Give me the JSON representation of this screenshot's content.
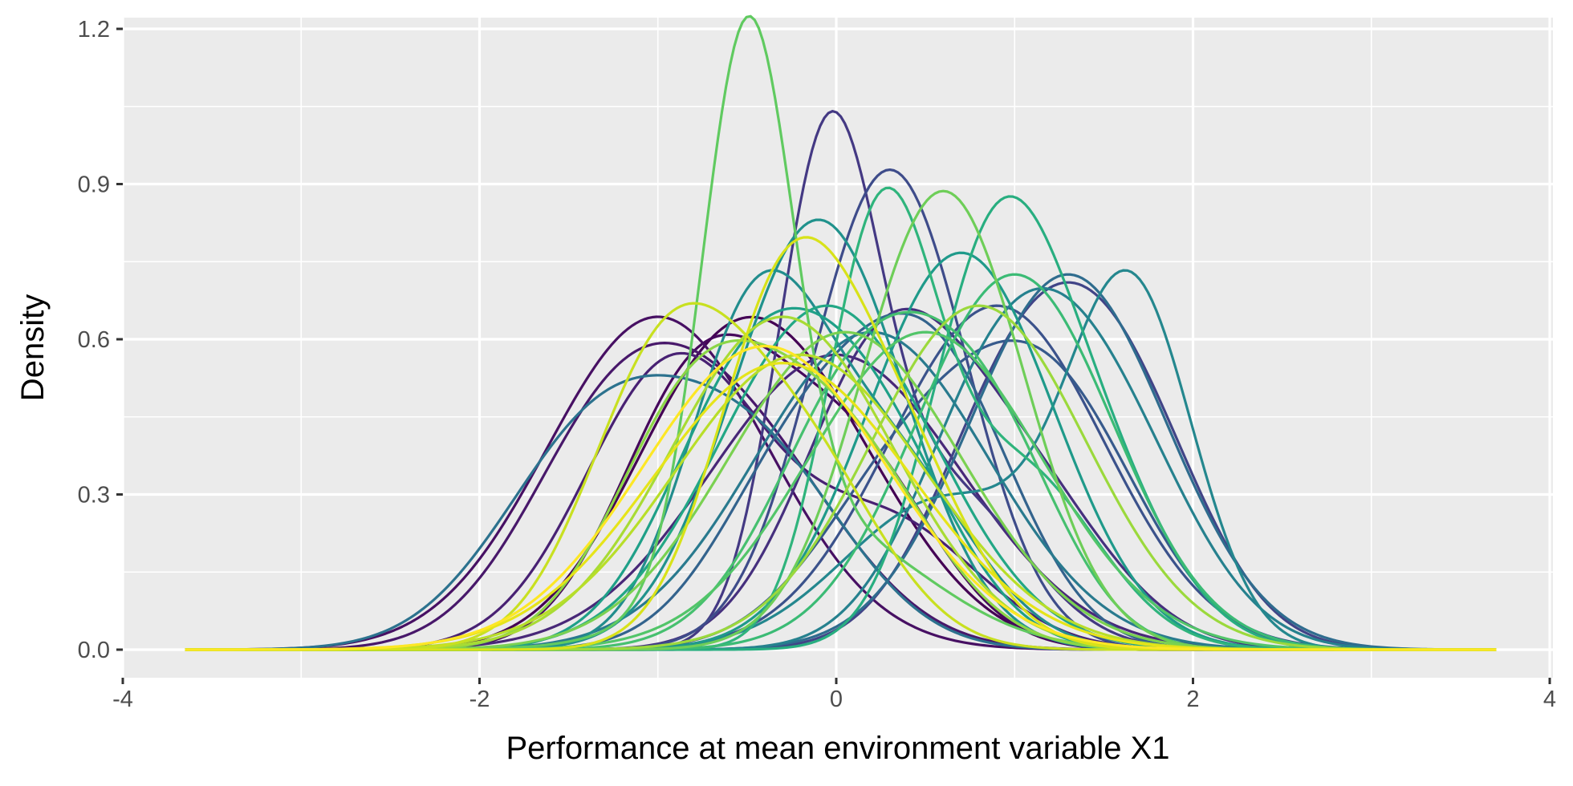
{
  "chart_data": {
    "type": "line",
    "xlabel": "Performance at mean environment variable X1",
    "ylabel": "Density",
    "xlim": [
      -4,
      4
    ],
    "ylim": [
      -0.05,
      1.2
    ],
    "x_ticks": [
      -4,
      -2,
      0,
      2,
      4
    ],
    "x_tick_labels": [
      "-4",
      "-2",
      "0",
      "2",
      "4"
    ],
    "y_ticks": [
      0.0,
      0.3,
      0.6,
      0.9,
      1.2
    ],
    "y_tick_labels": [
      "0.0",
      "0.3",
      "0.6",
      "0.9",
      "1.2"
    ],
    "grid": true,
    "legend": "none",
    "colors": {
      "panel_background": "#ebebeb",
      "grid_major": "#ffffff",
      "palette": "viridis"
    },
    "x_range": [
      -3.65,
      3.7
    ],
    "series": [
      {
        "color": "#440154",
        "components": [
          {
            "w": 0.55,
            "mu": -0.7,
            "sd": 0.52
          },
          {
            "w": 0.45,
            "mu": -0.1,
            "sd": 0.55
          }
        ]
      },
      {
        "color": "#46085c",
        "components": [
          {
            "w": 0.6,
            "mu": -0.75,
            "sd": 0.45
          },
          {
            "w": 0.4,
            "mu": 0.1,
            "sd": 0.45
          }
        ]
      },
      {
        "color": "#471063",
        "components": [
          {
            "w": 1.0,
            "mu": -1.0,
            "sd": 0.62
          }
        ]
      },
      {
        "color": "#48186a",
        "components": [
          {
            "w": 0.5,
            "mu": -1.25,
            "sd": 0.5
          },
          {
            "w": 0.5,
            "mu": -0.5,
            "sd": 0.55
          }
        ]
      },
      {
        "color": "#482173",
        "components": [
          {
            "w": 0.7,
            "mu": -0.9,
            "sd": 0.5
          },
          {
            "w": 0.3,
            "mu": 0.3,
            "sd": 0.5
          }
        ]
      },
      {
        "color": "#482878",
        "components": [
          {
            "w": 1.0,
            "mu": 0.0,
            "sd": 0.7
          }
        ]
      },
      {
        "color": "#46307e",
        "components": [
          {
            "w": 0.6,
            "mu": 0.25,
            "sd": 0.45
          },
          {
            "w": 0.4,
            "mu": 1.0,
            "sd": 0.5
          }
        ]
      },
      {
        "color": "#443983",
        "components": [
          {
            "w": 0.65,
            "mu": -0.05,
            "sd": 0.28
          },
          {
            "w": 0.35,
            "mu": 0.6,
            "sd": 0.45
          }
        ]
      },
      {
        "color": "#414487",
        "components": [
          {
            "w": 0.5,
            "mu": 1.0,
            "sd": 0.45
          },
          {
            "w": 0.5,
            "mu": 1.6,
            "sd": 0.45
          }
        ]
      },
      {
        "color": "#3e4c8a",
        "components": [
          {
            "w": 1.0,
            "mu": 0.3,
            "sd": 0.43
          }
        ]
      },
      {
        "color": "#3b528b",
        "components": [
          {
            "w": 1.0,
            "mu": 0.9,
            "sd": 0.6
          }
        ]
      },
      {
        "color": "#375a8c",
        "components": [
          {
            "w": 0.6,
            "mu": 1.2,
            "sd": 0.5
          },
          {
            "w": 0.4,
            "mu": 0.4,
            "sd": 0.5
          }
        ]
      },
      {
        "color": "#33638d",
        "components": [
          {
            "w": 0.6,
            "mu": 0.55,
            "sd": 0.45
          },
          {
            "w": 0.4,
            "mu": -0.2,
            "sd": 0.45
          }
        ]
      },
      {
        "color": "#2f6c8e",
        "components": [
          {
            "w": 1.0,
            "mu": 1.3,
            "sd": 0.55
          }
        ]
      },
      {
        "color": "#2c728e",
        "components": [
          {
            "w": 0.6,
            "mu": -1.3,
            "sd": 0.55
          },
          {
            "w": 0.4,
            "mu": -0.4,
            "sd": 0.5
          }
        ]
      },
      {
        "color": "#297a8e",
        "components": [
          {
            "w": 1.0,
            "mu": 0.2,
            "sd": 0.65
          }
        ]
      },
      {
        "color": "#26818e",
        "components": [
          {
            "w": 0.5,
            "mu": 1.5,
            "sd": 0.48
          },
          {
            "w": 0.5,
            "mu": 0.9,
            "sd": 0.45
          }
        ]
      },
      {
        "color": "#24878e",
        "components": [
          {
            "w": 0.6,
            "mu": 1.65,
            "sd": 0.35
          },
          {
            "w": 0.4,
            "mu": 0.6,
            "sd": 0.55
          }
        ]
      },
      {
        "color": "#228d8d",
        "components": [
          {
            "w": 0.6,
            "mu": -0.45,
            "sd": 0.38
          },
          {
            "w": 0.4,
            "mu": 0.3,
            "sd": 0.45
          }
        ]
      },
      {
        "color": "#20928c",
        "components": [
          {
            "w": 1.0,
            "mu": -0.1,
            "sd": 0.48
          }
        ]
      },
      {
        "color": "#1f9a8a",
        "components": [
          {
            "w": 1.0,
            "mu": 0.7,
            "sd": 0.52
          }
        ]
      },
      {
        "color": "#1fa088",
        "components": [
          {
            "w": 0.55,
            "mu": -0.5,
            "sd": 0.45
          },
          {
            "w": 0.45,
            "mu": 0.2,
            "sd": 0.45
          }
        ]
      },
      {
        "color": "#22a785",
        "components": [
          {
            "w": 1.0,
            "mu": -0.05,
            "sd": 0.6
          }
        ]
      },
      {
        "color": "#28ae80",
        "components": [
          {
            "w": 0.5,
            "mu": 0.85,
            "sd": 0.35
          },
          {
            "w": 0.5,
            "mu": 1.3,
            "sd": 0.45
          }
        ]
      },
      {
        "color": "#2fb47c",
        "components": [
          {
            "w": 0.6,
            "mu": 0.25,
            "sd": 0.3
          },
          {
            "w": 0.4,
            "mu": 1.0,
            "sd": 0.45
          }
        ]
      },
      {
        "color": "#3bbb75",
        "components": [
          {
            "w": 1.0,
            "mu": 1.0,
            "sd": 0.55
          }
        ]
      },
      {
        "color": "#46c06f",
        "components": [
          {
            "w": 0.7,
            "mu": 0.2,
            "sd": 0.5
          },
          {
            "w": 0.3,
            "mu": 0.9,
            "sd": 0.4
          }
        ]
      },
      {
        "color": "#52c569",
        "components": [
          {
            "w": 1.0,
            "mu": 0.5,
            "sd": 0.65
          }
        ]
      },
      {
        "color": "#60ca60",
        "components": [
          {
            "w": 0.65,
            "mu": -0.5,
            "sd": 0.25
          },
          {
            "w": 0.35,
            "mu": -0.1,
            "sd": 0.6
          }
        ]
      },
      {
        "color": "#6ece58",
        "components": [
          {
            "w": 1.0,
            "mu": 0.6,
            "sd": 0.45
          }
        ]
      },
      {
        "color": "#7ad151",
        "components": [
          {
            "w": 1.0,
            "mu": 0.05,
            "sd": 0.65
          }
        ]
      },
      {
        "color": "#8bd646",
        "components": [
          {
            "w": 0.5,
            "mu": -0.8,
            "sd": 0.45
          },
          {
            "w": 0.5,
            "mu": 0.0,
            "sd": 0.5
          }
        ]
      },
      {
        "color": "#9bd93c",
        "components": [
          {
            "w": 1.0,
            "mu": 0.8,
            "sd": 0.6
          }
        ]
      },
      {
        "color": "#a8db34",
        "components": [
          {
            "w": 1.0,
            "mu": -0.3,
            "sd": 0.62
          }
        ]
      },
      {
        "color": "#b8de29",
        "components": [
          {
            "w": 1.0,
            "mu": -0.2,
            "sd": 0.7
          }
        ]
      },
      {
        "color": "#c8e020",
        "components": [
          {
            "w": 0.6,
            "mu": -0.95,
            "sd": 0.43
          },
          {
            "w": 0.4,
            "mu": -0.2,
            "sd": 0.45
          }
        ]
      },
      {
        "color": "#d8e219",
        "components": [
          {
            "w": 0.6,
            "mu": -0.3,
            "sd": 0.38
          },
          {
            "w": 0.4,
            "mu": 0.3,
            "sd": 0.42
          }
        ]
      },
      {
        "color": "#e6e419",
        "components": [
          {
            "w": 1.0,
            "mu": -0.3,
            "sd": 0.72
          }
        ]
      },
      {
        "color": "#fde725",
        "components": [
          {
            "w": 1.0,
            "mu": -0.4,
            "sd": 0.68
          }
        ]
      }
    ]
  }
}
